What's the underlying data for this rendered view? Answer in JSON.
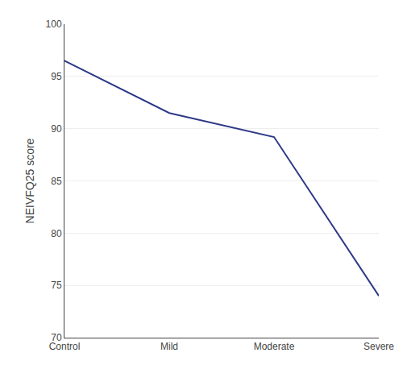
{
  "chart_data": {
    "type": "line",
    "categories": [
      "Control",
      "Mild",
      "Moderate",
      "Severe"
    ],
    "values": [
      96.5,
      91.5,
      89.2,
      74.0
    ],
    "color": "#2e3a87",
    "ylabel": "NEIVFQ25 score",
    "ylim": [
      70,
      100
    ],
    "yticks": [
      70,
      75,
      80,
      85,
      90,
      95,
      100
    ],
    "grid": true
  }
}
